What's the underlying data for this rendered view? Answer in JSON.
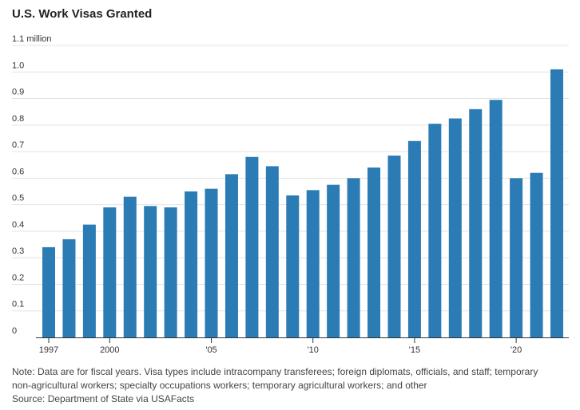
{
  "chart_data": {
    "type": "bar",
    "title": "U.S. Work Visas Granted",
    "xlabel": "",
    "ylabel": "",
    "ylim": [
      0,
      1.1
    ],
    "y_ticks": [
      {
        "value": 1.1,
        "label": "1.1 million"
      },
      {
        "value": 1.0,
        "label": "1.0"
      },
      {
        "value": 0.9,
        "label": "0.9"
      },
      {
        "value": 0.8,
        "label": "0.8"
      },
      {
        "value": 0.7,
        "label": "0.7"
      },
      {
        "value": 0.6,
        "label": "0.6"
      },
      {
        "value": 0.5,
        "label": "0.5"
      },
      {
        "value": 0.4,
        "label": "0.4"
      },
      {
        "value": 0.3,
        "label": "0.3"
      },
      {
        "value": 0.2,
        "label": "0.2"
      },
      {
        "value": 0.1,
        "label": "0.1"
      },
      {
        "value": 0,
        "label": "0"
      }
    ],
    "x_ticks": [
      {
        "category": 1997,
        "label": "1997"
      },
      {
        "category": 2000,
        "label": "2000"
      },
      {
        "category": 2005,
        "label": "'05"
      },
      {
        "category": 2010,
        "label": "'10"
      },
      {
        "category": 2015,
        "label": "'15"
      },
      {
        "category": 2020,
        "label": "'20"
      }
    ],
    "categories": [
      1997,
      1998,
      1999,
      2000,
      2001,
      2002,
      2003,
      2004,
      2005,
      2006,
      2007,
      2008,
      2009,
      2010,
      2011,
      2012,
      2013,
      2014,
      2015,
      2016,
      2017,
      2018,
      2019,
      2020,
      2021,
      2022
    ],
    "values": [
      0.34,
      0.37,
      0.425,
      0.49,
      0.53,
      0.495,
      0.49,
      0.55,
      0.56,
      0.615,
      0.68,
      0.645,
      0.535,
      0.555,
      0.575,
      0.6,
      0.64,
      0.685,
      0.74,
      0.805,
      0.825,
      0.86,
      0.895,
      0.6,
      0.62,
      1.01
    ],
    "grid": true,
    "bar_color": "#2b7bb4"
  },
  "notes": {
    "line1": "Note: Data are for fiscal years. Visa types include intracompany transferees; foreign diplomats, officials, and staff; temporary",
    "line2": "non-agricultural workers; specialty occupations workers; temporary agricultural workers; and other",
    "source": "Source: Department of State via USAFacts"
  }
}
